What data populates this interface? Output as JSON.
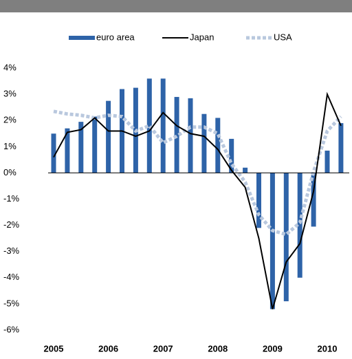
{
  "chart_data": {
    "type": "bar-line",
    "categories": [
      "2005",
      null,
      null,
      null,
      "2006",
      null,
      null,
      null,
      "2007",
      null,
      null,
      null,
      "2008",
      null,
      null,
      null,
      "2009",
      null,
      null,
      null,
      "2010",
      null
    ],
    "series": [
      {
        "name": "euro area",
        "kind": "bar",
        "color": "#2e63a8",
        "values": [
          1.5,
          1.7,
          1.95,
          2.15,
          2.75,
          3.2,
          3.25,
          3.6,
          3.6,
          2.9,
          2.85,
          2.25,
          2.1,
          1.3,
          0.2,
          -2.1,
          -5.2,
          -4.9,
          -4.0,
          -2.05,
          0.85,
          1.9
        ]
      },
      {
        "name": "Japan",
        "kind": "line",
        "color": "#000000",
        "values": [
          0.6,
          1.55,
          1.65,
          2.1,
          1.6,
          1.6,
          1.4,
          1.6,
          2.3,
          1.8,
          1.5,
          1.4,
          0.9,
          0.1,
          -0.55,
          -2.5,
          -5.2,
          -3.4,
          -2.7,
          -0.7,
          3.0,
          1.8
        ]
      },
      {
        "name": "USA",
        "kind": "dotted-line",
        "color": "#b9c8de",
        "values": [
          2.35,
          2.25,
          2.2,
          2.1,
          2.2,
          2.15,
          1.6,
          1.8,
          1.15,
          1.4,
          1.75,
          1.75,
          1.5,
          0.35,
          -0.35,
          -1.6,
          -2.2,
          -2.35,
          -1.9,
          0.05,
          1.6,
          2.15
        ]
      }
    ],
    "ylim": [
      -6.5,
      4.5
    ],
    "yticks": [
      {
        "value": 4,
        "label": "4%"
      },
      {
        "value": 3,
        "label": "3%"
      },
      {
        "value": 2,
        "label": "2%"
      },
      {
        "value": 1,
        "label": "1%"
      },
      {
        "value": 0,
        "label": "0%"
      },
      {
        "value": -1,
        "label": "-1%"
      },
      {
        "value": -2,
        "label": "-2%"
      },
      {
        "value": -3,
        "label": "-3%"
      },
      {
        "value": -4,
        "label": "-4%"
      },
      {
        "value": -5,
        "label": "-5%"
      },
      {
        "value": -6,
        "label": "-6%"
      }
    ],
    "legend": "top"
  }
}
